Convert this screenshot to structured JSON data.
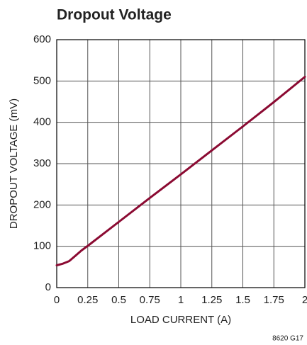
{
  "chart_data": {
    "type": "line",
    "title": "Dropout Voltage",
    "x_label": "LOAD CURRENT (A)",
    "y_label": "DROPOUT VOLTAGE (mV)",
    "note": "8620 G17",
    "x": [
      0,
      0.05,
      0.1,
      0.15,
      0.2,
      0.25,
      0.5,
      0.75,
      1,
      1.25,
      1.5,
      1.75,
      2
    ],
    "series": [
      {
        "color": "#8b0a32",
        "values": [
          54,
          58,
          64,
          77,
          90,
          101,
          159,
          217,
          274,
          332,
          390,
          449,
          510
        ]
      }
    ],
    "xlim": [
      0,
      2
    ],
    "xticks": [
      0,
      0.25,
      0.5,
      0.75,
      1,
      1.25,
      1.5,
      1.75,
      2
    ],
    "ylim": [
      0,
      600
    ],
    "yticks": [
      0,
      100,
      200,
      300,
      400,
      500,
      600
    ],
    "grid": true
  }
}
